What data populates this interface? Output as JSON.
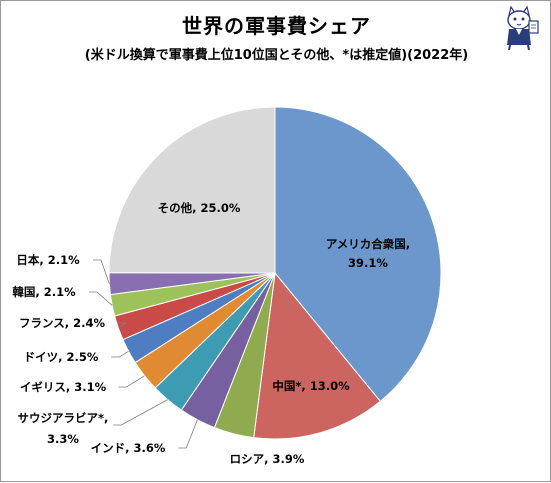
{
  "title": "世界の軍事費シェア",
  "subtitle": "(米ドル換算で軍事費上位10位国とその他、*は推定値)(2022年)",
  "icons": {
    "mascot": "cat-mascot-icon"
  },
  "chart_data": {
    "type": "pie",
    "start_angle": "12 o'clock, clockwise",
    "slices": [
      {
        "label": "アメリカ合衆国",
        "value": 39.1,
        "text": "アメリカ合衆国,",
        "value_text": "39.1%",
        "color": "#6b97cc"
      },
      {
        "label": "中国*",
        "value": 13.0,
        "text": "中国*, 13.0%",
        "color": "#cc6560"
      },
      {
        "label": "ロシア",
        "value": 3.9,
        "text": "ロシア, 3.9%",
        "color": "#8faa4f"
      },
      {
        "label": "インド",
        "value": 3.6,
        "text": "インド, 3.6%",
        "color": "#7760a0"
      },
      {
        "label": "サウジアラビア*",
        "value": 3.3,
        "text": "サウジアラビア*,",
        "value_text": "3.3%",
        "color": "#3e9cb2"
      },
      {
        "label": "イギリス",
        "value": 3.1,
        "text": "イギリス, 3.1%",
        "color": "#e08a33"
      },
      {
        "label": "ドイツ",
        "value": 2.5,
        "text": "ドイツ, 2.5%",
        "color": "#4f7dc2"
      },
      {
        "label": "フランス",
        "value": 2.4,
        "text": "フランス, 2.4%",
        "color": "#c94a47"
      },
      {
        "label": "韓国",
        "value": 2.1,
        "text": "韓国, 2.1%",
        "color": "#9ec25a"
      },
      {
        "label": "日本",
        "value": 2.1,
        "text": "日本, 2.1%",
        "color": "#8a6fb0"
      },
      {
        "label": "その他",
        "value": 25.0,
        "text": "その他, 25.0%",
        "color": "#d9d9d9"
      }
    ]
  }
}
